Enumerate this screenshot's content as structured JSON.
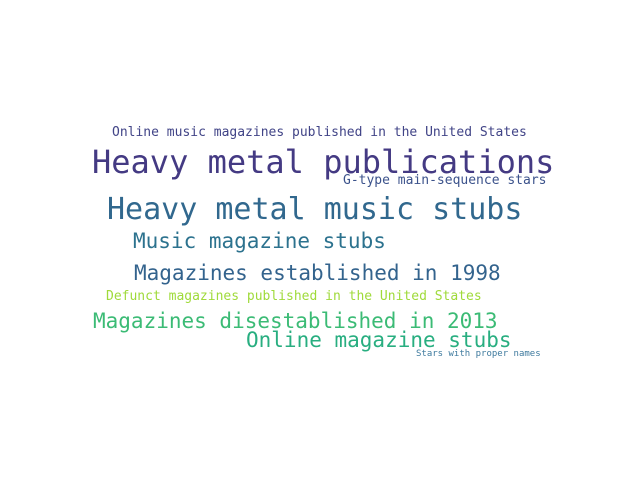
{
  "words": [
    {
      "text": "Online music magazines published in the United States",
      "color": "#414487"
    },
    {
      "text": "Heavy metal publications",
      "color": "#443a83"
    },
    {
      "text": "G-type main-sequence stars",
      "color": "#3b528b"
    },
    {
      "text": "Heavy metal music stubs",
      "color": "#31688e"
    },
    {
      "text": "Music magazine stubs",
      "color": "#2c728e"
    },
    {
      "text": "Magazines established in 1998",
      "color": "#33638d"
    },
    {
      "text": "Defunct magazines published in the United States",
      "color": "#9fda3a"
    },
    {
      "text": "Magazines disestablished in 2013",
      "color": "#3bbb75"
    },
    {
      "text": "Online magazine stubs",
      "color": "#28ae80"
    },
    {
      "text": "Stars with proper names",
      "color": "#3e7a9e"
    }
  ]
}
